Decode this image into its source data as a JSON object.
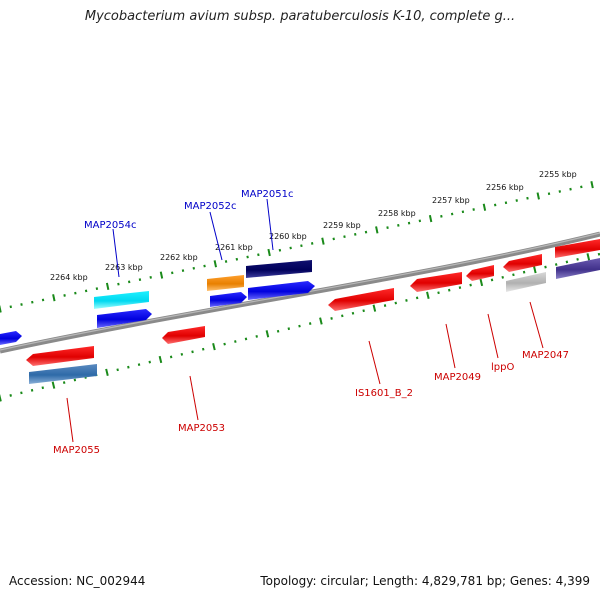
{
  "title": "Mycobacterium avium subsp. paratuberculosis K-10, complete g...",
  "footer": {
    "accession": "Accession: NC_002944",
    "summary": "Topology: circular; Length: 4,829,781 bp; Genes: 4,399"
  },
  "colors": {
    "label_forward": "#0000c8",
    "label_reverse": "#cc0000",
    "tick": "#1a8a1a",
    "backbone": "#808080"
  },
  "ticks": [
    {
      "label": "2255 kbp"
    },
    {
      "label": "2256 kbp"
    },
    {
      "label": "2257 kbp"
    },
    {
      "label": "2258 kbp"
    },
    {
      "label": "2259 kbp"
    },
    {
      "label": "2260 kbp"
    },
    {
      "label": "2261 kbp"
    },
    {
      "label": "2262 kbp"
    },
    {
      "label": "2263 kbp"
    },
    {
      "label": "2264 kbp"
    }
  ],
  "features": [
    {
      "label": "MAP2051c",
      "strand": "forward"
    },
    {
      "label": "MAP2052c",
      "strand": "forward"
    },
    {
      "label": "MAP2054c",
      "strand": "forward"
    },
    {
      "label": "MAP2047",
      "strand": "reverse"
    },
    {
      "label": "lppO",
      "strand": "reverse"
    },
    {
      "label": "MAP2049",
      "strand": "reverse"
    },
    {
      "label": "IS1601_B_2",
      "strand": "reverse"
    },
    {
      "label": "MAP2053",
      "strand": "reverse"
    },
    {
      "label": "MAP2055",
      "strand": "reverse"
    }
  ]
}
